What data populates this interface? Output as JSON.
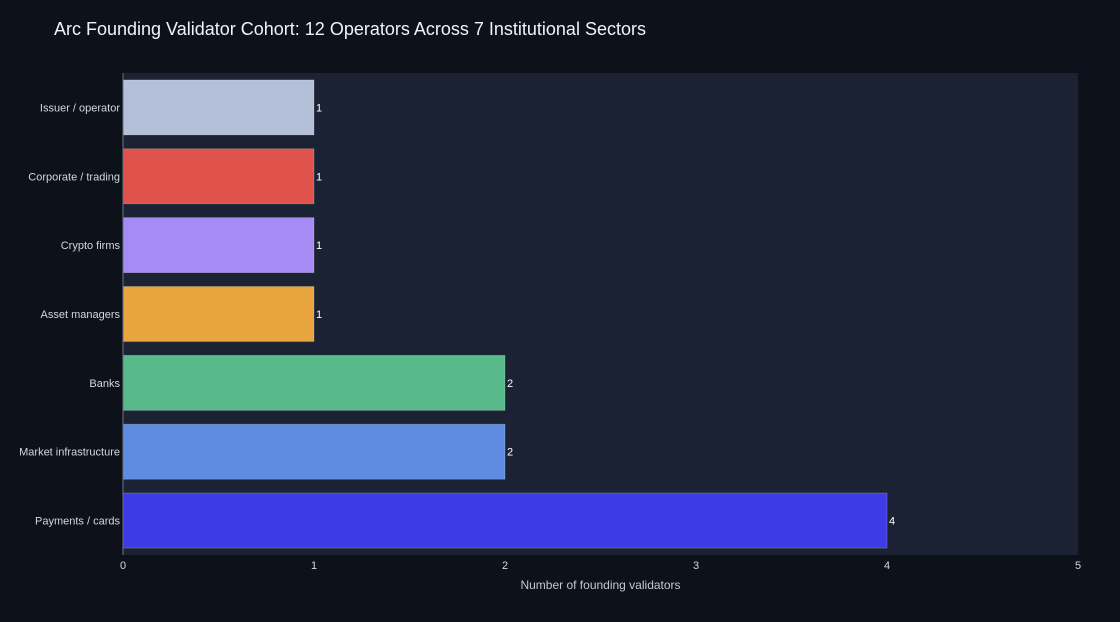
{
  "chart_data": {
    "type": "bar",
    "orientation": "horizontal",
    "title": "Arc Founding Validator Cohort: 12 Operators Across 7 Institutional Sectors",
    "xlabel": "Number of founding validators",
    "ylabel": "",
    "xlim": [
      0,
      5
    ],
    "x_ticks": [
      0,
      1,
      2,
      3,
      4,
      5
    ],
    "categories": [
      "Issuer / operator",
      "Corporate / trading",
      "Crypto firms",
      "Asset managers",
      "Banks",
      "Market infrastructure",
      "Payments / cards"
    ],
    "values": [
      1,
      1,
      1,
      1,
      2,
      2,
      4
    ],
    "bar_colors": [
      "#b4bfd8",
      "#e0524c",
      "#a78bf4",
      "#e9a43d",
      "#58ba8a",
      "#5f8ce0",
      "#3c3be6"
    ],
    "data_labels": [
      "1",
      "1",
      "1",
      "1",
      "2",
      "2",
      "4"
    ],
    "grid": false,
    "legend": "none",
    "colors": {
      "page_background": "#0d111a",
      "plot_background": "#1b2233",
      "text": "#d3d7de"
    }
  }
}
